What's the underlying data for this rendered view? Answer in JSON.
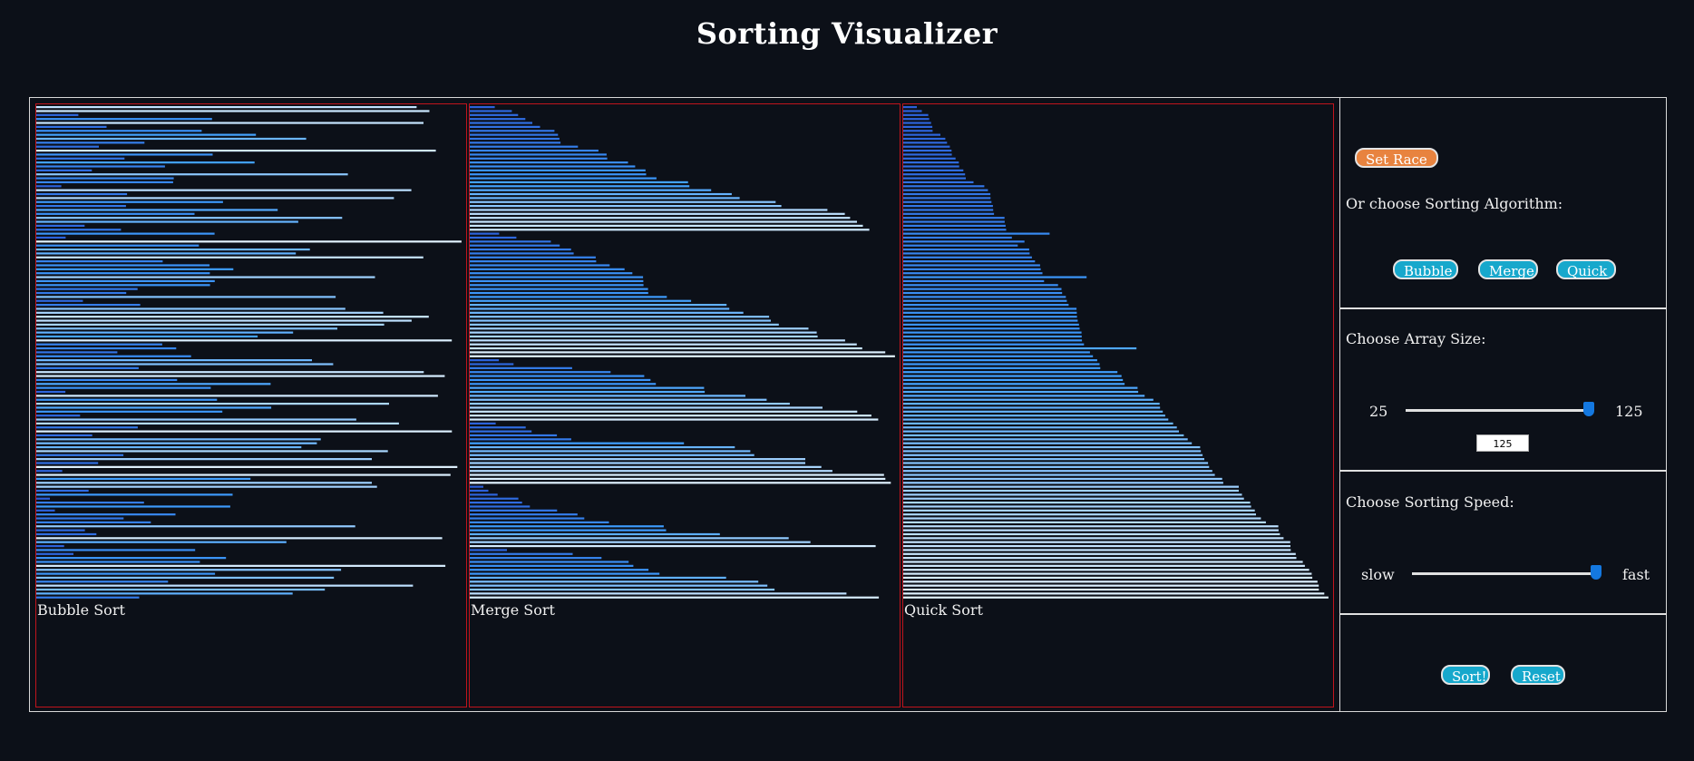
{
  "title": "Sorting Visualizer",
  "panels": [
    {
      "label": "Bubble Sort"
    },
    {
      "label": "Merge Sort"
    },
    {
      "label": "Quick Sort"
    }
  ],
  "controls": {
    "set_race_label": "Set Race",
    "algorithm_heading": "Or choose Sorting Algorithm:",
    "algorithm_buttons": [
      "Bubble",
      "Merge",
      "Quick"
    ],
    "array_size_heading": "Choose Array Size:",
    "array_size_min": "25",
    "array_size_max": "125",
    "array_size_value": "125",
    "speed_heading": "Choose Sorting Speed:",
    "speed_min_label": "slow",
    "speed_max_label": "fast",
    "speed_level": 1.0,
    "sort_label": "Sort!",
    "reset_label": "Reset"
  },
  "colors": {
    "background": "#0c1018",
    "panel_border": "#c0141c",
    "bar_low": "#2a5ad6",
    "bar_mid": "#3fa0ff",
    "bar_high": "#e4f4ff",
    "accent_button": "#17a8cc",
    "race_button": "#e8833f"
  }
}
